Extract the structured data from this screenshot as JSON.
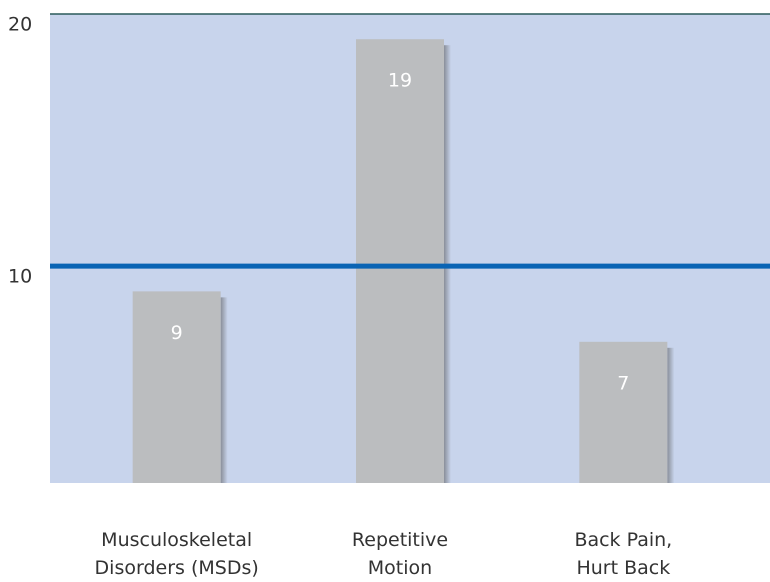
{
  "chart_data": {
    "type": "bar",
    "categories": [
      "Musculoskeletal\nDisorders (MSDs)",
      "Repetitive\nMotion",
      "Back Pain,\nHurt Back"
    ],
    "values": [
      9,
      19,
      7
    ],
    "color": "#bbbdbf",
    "ylim": [
      1.4,
      20
    ],
    "yticks": [
      10,
      20
    ],
    "grid": true
  }
}
